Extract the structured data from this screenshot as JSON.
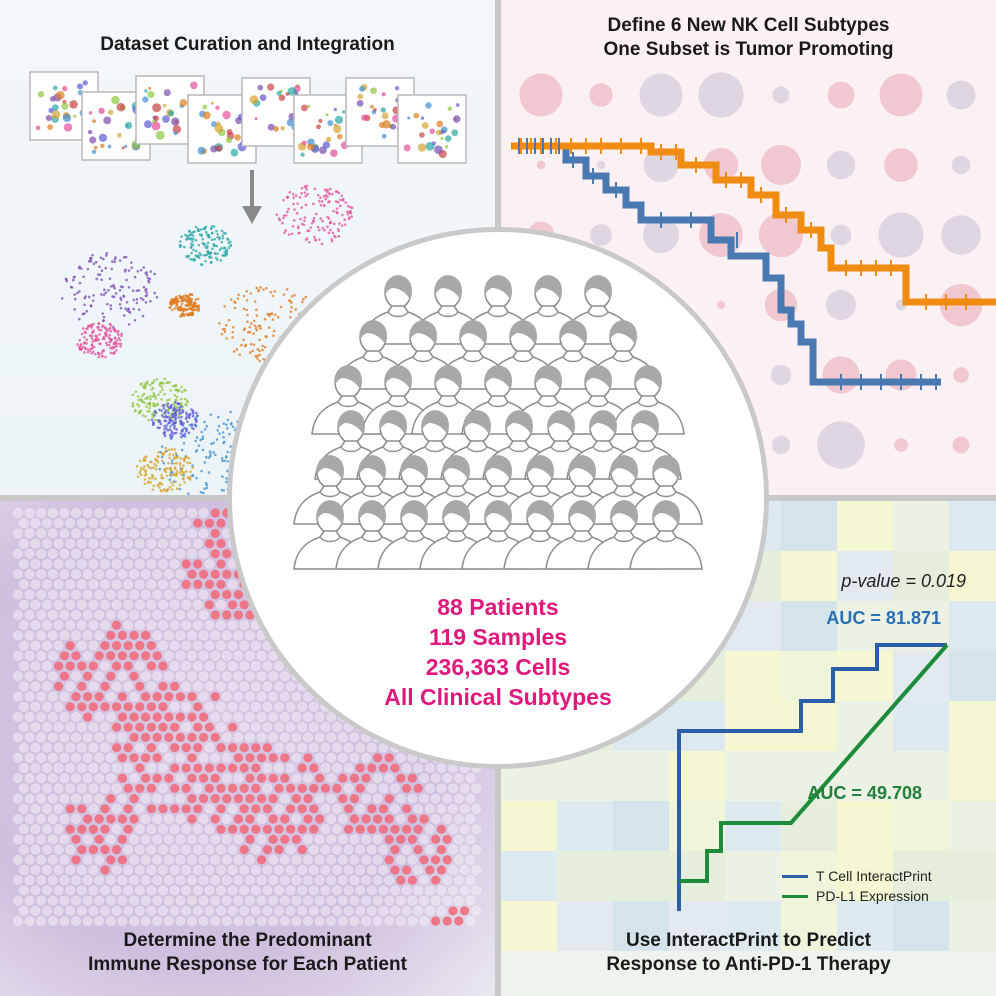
{
  "panels": {
    "top_left": {
      "title": "Dataset Curation and Integration"
    },
    "top_right": {
      "title_line1": "Define 6 New NK Cell Subtypes",
      "title_line2": "One Subset is Tumor Promoting"
    },
    "bottom_left": {
      "title_line1": "Determine the Predominant",
      "title_line2": "Immune Response for Each Patient"
    },
    "bottom_right": {
      "title_line1": "Use InteractPrint to Predict",
      "title_line2": "Response to Anti-PD-1 Therapy"
    }
  },
  "center": {
    "stats": [
      "88 Patients",
      "119 Samples",
      "236,363 Cells",
      "All Clinical Subtypes"
    ]
  },
  "roc": {
    "p_value_text": "p-value = 0.019",
    "auc_tcell_text": "AUC = 81.871",
    "auc_pdl1_text": "AUC = 49.708",
    "legend": [
      {
        "label": "T Cell InteractPrint",
        "color": "#2a5ea8"
      },
      {
        "label": "PD-L1 Expression",
        "color": "#1e8a3c"
      }
    ]
  },
  "colors": {
    "accent_magenta": "#e0187c",
    "km_orange": "#f08c12",
    "km_blue": "#4a78b0",
    "roc_blue": "#2a5ea8",
    "roc_green": "#1e8a3c"
  }
}
